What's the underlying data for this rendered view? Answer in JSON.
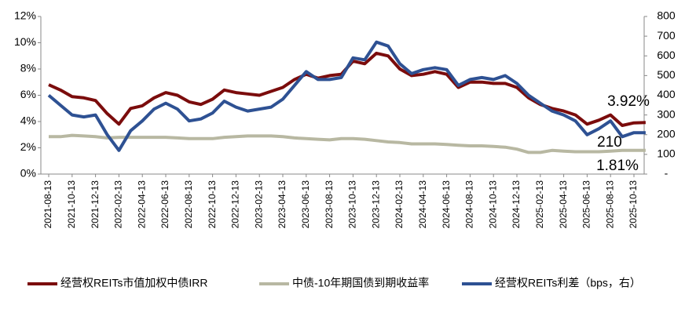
{
  "chart_data": {
    "type": "line",
    "categories": [
      "2021-08-13",
      null,
      "2021-10-13",
      null,
      "2021-12-13",
      null,
      "2022-02-13",
      null,
      "2022-04-13",
      null,
      "2022-06-13",
      null,
      "2022-08-13",
      null,
      "2022-10-13",
      null,
      "2022-12-13",
      null,
      "2023-02-13",
      null,
      "2023-04-13",
      null,
      "2023-06-13",
      null,
      "2023-08-13",
      null,
      "2023-10-13",
      null,
      "2023-12-13",
      null,
      "2024-02-13",
      null,
      "2024-04-13",
      null,
      "2024-06-13",
      null,
      "2024-08-13",
      null,
      "2024-10-13",
      null,
      "2024-12-13",
      null,
      "2025-02-13",
      null,
      "2025-04-13",
      null,
      "2025-06-13",
      null,
      "2025-08-13",
      null,
      "2025-10-13",
      null
    ],
    "series": [
      {
        "name": "经营权REITs市值加权中债IRR",
        "color": "#7b0c0c",
        "axis": "y",
        "values": [
          6.8,
          6.4,
          5.9,
          5.8,
          5.6,
          4.6,
          3.8,
          5.0,
          5.2,
          5.8,
          6.2,
          6.0,
          5.5,
          5.3,
          5.7,
          6.4,
          6.2,
          6.1,
          6.0,
          6.3,
          6.6,
          7.2,
          7.6,
          7.3,
          7.5,
          7.6,
          8.6,
          8.4,
          9.2,
          9.0,
          8.0,
          7.5,
          7.6,
          7.8,
          7.6,
          6.6,
          7.0,
          7.0,
          6.9,
          6.9,
          6.6,
          5.8,
          5.3,
          5.0,
          4.8,
          4.5,
          3.8,
          4.1,
          4.5,
          3.7,
          3.9,
          3.92
        ]
      },
      {
        "name": "中债-10年期国债到期收益率",
        "color": "#b8b8a2",
        "axis": "y",
        "values": [
          2.85,
          2.85,
          2.95,
          2.9,
          2.85,
          2.75,
          2.8,
          2.8,
          2.8,
          2.8,
          2.8,
          2.75,
          2.7,
          2.7,
          2.7,
          2.8,
          2.85,
          2.9,
          2.9,
          2.9,
          2.85,
          2.75,
          2.7,
          2.65,
          2.6,
          2.7,
          2.7,
          2.65,
          2.55,
          2.45,
          2.4,
          2.3,
          2.3,
          2.3,
          2.25,
          2.2,
          2.15,
          2.15,
          2.1,
          2.05,
          1.9,
          1.65,
          1.65,
          1.8,
          1.75,
          1.7,
          1.7,
          1.7,
          1.75,
          1.8,
          1.8,
          1.81
        ]
      },
      {
        "name": "经营权REITs利差（bps，右）",
        "color": "#2e5193",
        "axis": "y2",
        "values": [
          400,
          350,
          300,
          290,
          300,
          200,
          120,
          220,
          270,
          330,
          360,
          330,
          270,
          280,
          310,
          370,
          340,
          320,
          330,
          340,
          380,
          450,
          520,
          480,
          480,
          490,
          590,
          580,
          670,
          650,
          560,
          510,
          530,
          540,
          530,
          450,
          480,
          490,
          480,
          500,
          460,
          400,
          360,
          320,
          300,
          270,
          200,
          230,
          270,
          190,
          210,
          210
        ]
      }
    ],
    "ylim": [
      0,
      12
    ],
    "yticks": [
      {
        "value": 0,
        "label": "0%"
      },
      {
        "value": 2,
        "label": "2%"
      },
      {
        "value": 4,
        "label": "4%"
      },
      {
        "value": 6,
        "label": "6%"
      },
      {
        "value": 8,
        "label": "8%"
      },
      {
        "value": 10,
        "label": "10%"
      },
      {
        "value": 12,
        "label": "12%"
      }
    ],
    "y2lim": [
      0,
      800
    ],
    "y2ticks": [
      {
        "value": 0,
        "label": "-"
      },
      100,
      200,
      300,
      400,
      500,
      600,
      700,
      800
    ],
    "annotations": [
      "3.92%",
      "210",
      "1.81%"
    ],
    "grid": false,
    "legend": "bottom"
  }
}
